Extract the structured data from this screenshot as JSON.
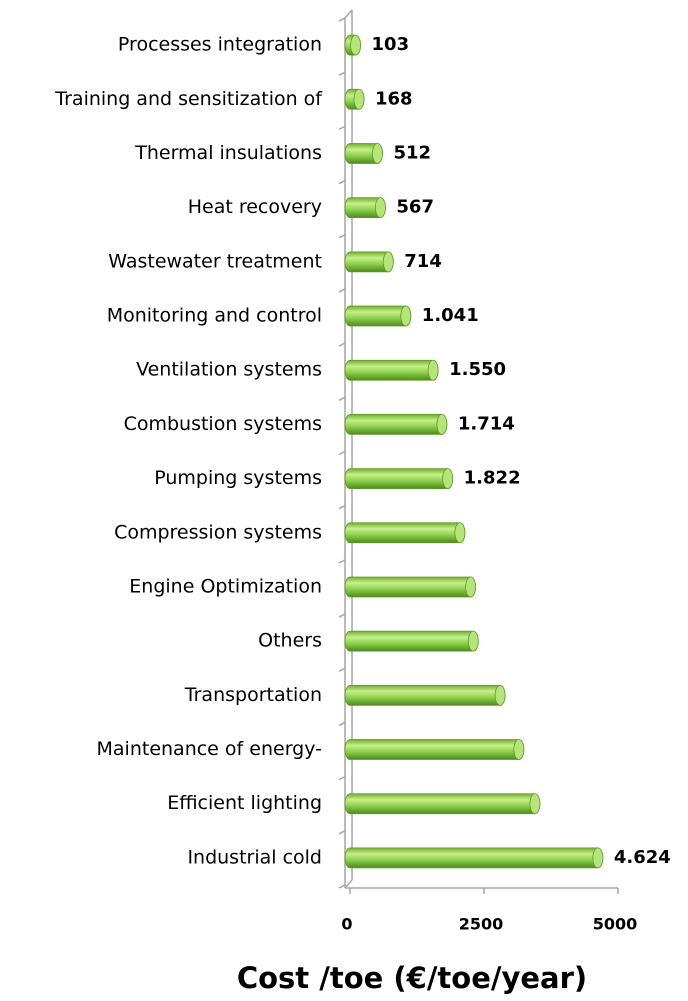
{
  "chart_data": {
    "type": "bar",
    "orientation": "horizontal",
    "xlabel": "Cost /toe (€/toe/year)",
    "categories": [
      "Processes integration",
      "Training and sensitization of",
      "Thermal insulations",
      "Heat recovery",
      "Wastewater treatment",
      "Monitoring and control",
      "Ventilation systems",
      "Combustion systems",
      "Pumping systems",
      "Compression systems",
      "Engine Optimization",
      "Others",
      "Transportation",
      "Maintenance of energy-",
      "Efficient lighting",
      "Industrial cold"
    ],
    "values": [
      103,
      168,
      512,
      567,
      714,
      1041,
      1550,
      1714,
      1822,
      2050,
      2250,
      2300,
      2800,
      3150,
      3450,
      4624
    ],
    "value_labels": [
      "103",
      "168",
      "512",
      "567",
      "714",
      "1.041",
      "1.550",
      "1.714",
      "1.822",
      null,
      null,
      null,
      null,
      null,
      null,
      "4.624"
    ],
    "color": "#8fd14f",
    "xlim": [
      0,
      5000
    ],
    "xticks": [
      0,
      2500,
      5000
    ],
    "grid": false
  }
}
